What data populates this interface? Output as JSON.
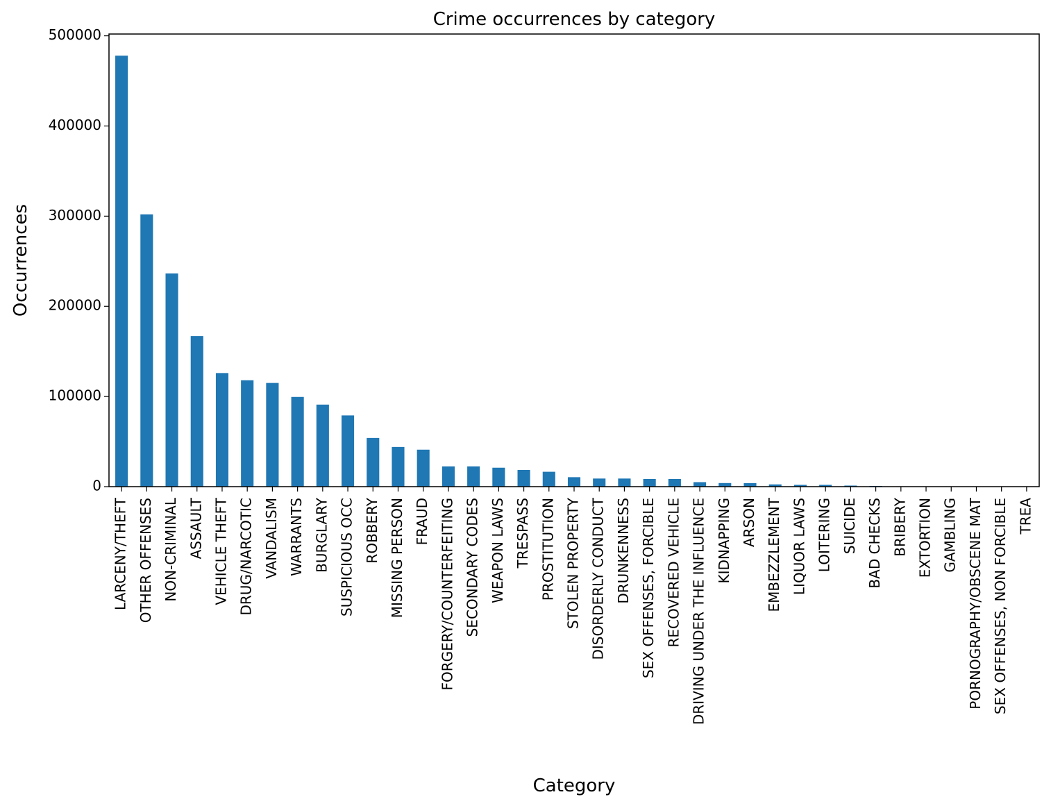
{
  "chart_data": {
    "type": "bar",
    "title": "Crime occurrences by category",
    "xlabel": "Category",
    "ylabel": "Occurrences",
    "ylim": [
      0,
      502000
    ],
    "yticks": [
      0,
      100000,
      200000,
      300000,
      400000,
      500000
    ],
    "grid": false,
    "legend": "none",
    "bar_color": "#1f77b4",
    "categories": [
      "LARCENY/THEFT",
      "OTHER OFFENSES",
      "NON-CRIMINAL",
      "ASSAULT",
      "VEHICLE THEFT",
      "DRUG/NARCOTIC",
      "VANDALISM",
      "WARRANTS",
      "BURGLARY",
      "SUSPICIOUS OCC",
      "ROBBERY",
      "MISSING PERSON",
      "FRAUD",
      "FORGERY/COUNTERFEITING",
      "SECONDARY CODES",
      "WEAPON LAWS",
      "TRESPASS",
      "PROSTITUTION",
      "STOLEN PROPERTY",
      "DISORDERLY CONDUCT",
      "DRUNKENNESS",
      "SEX OFFENSES, FORCIBLE",
      "RECOVERED VEHICLE",
      "DRIVING UNDER THE INFLUENCE",
      "KIDNAPPING",
      "ARSON",
      "EMBEZZLEMENT",
      "LIQUOR LAWS",
      "LOITERING",
      "SUICIDE",
      "BAD CHECKS",
      "BRIBERY",
      "EXTORTION",
      "GAMBLING",
      "PORNOGRAPHY/OBSCENE MAT",
      "SEX OFFENSES, NON FORCIBLE",
      "TREA"
    ],
    "values": [
      478000,
      302000,
      236500,
      167000,
      126000,
      118000,
      115000,
      99500,
      91000,
      79000,
      54000,
      44000,
      41000,
      22500,
      22500,
      21000,
      18500,
      16500,
      10500,
      9000,
      9000,
      8500,
      8500,
      5000,
      4000,
      3900,
      2500,
      2000,
      2000,
      1200,
      800,
      400,
      300,
      200,
      100,
      50,
      10
    ]
  }
}
